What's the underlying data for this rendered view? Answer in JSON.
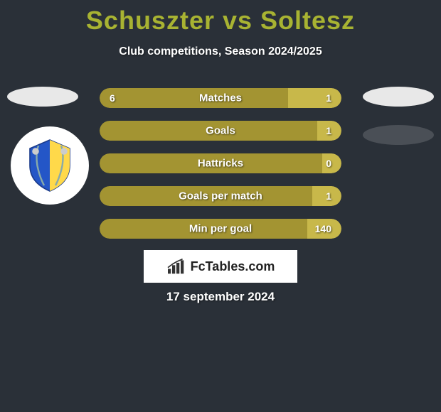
{
  "title": "Schuszter vs Soltesz",
  "subtitle": "Club competitions, Season 2024/2025",
  "date": "17 september 2024",
  "logo_text": "FcTables.com",
  "colors": {
    "left_bar": "#a39432",
    "right_bar": "#c8b84a",
    "background": "#2a3038",
    "title": "#a8b332",
    "text": "#ffffff"
  },
  "bars": [
    {
      "label": "Matches",
      "left_val": "6",
      "right_val": "1",
      "left_pct": 78
    },
    {
      "label": "Goals",
      "left_val": "",
      "right_val": "1",
      "left_pct": 90
    },
    {
      "label": "Hattricks",
      "left_val": "",
      "right_val": "0",
      "left_pct": 92
    },
    {
      "label": "Goals per match",
      "left_val": "",
      "right_val": "1",
      "left_pct": 88
    },
    {
      "label": "Min per goal",
      "left_val": "",
      "right_val": "140",
      "left_pct": 86
    }
  ],
  "badge": {
    "shield_color": "#2456c7",
    "shield_stripe": "#ffd94a"
  }
}
